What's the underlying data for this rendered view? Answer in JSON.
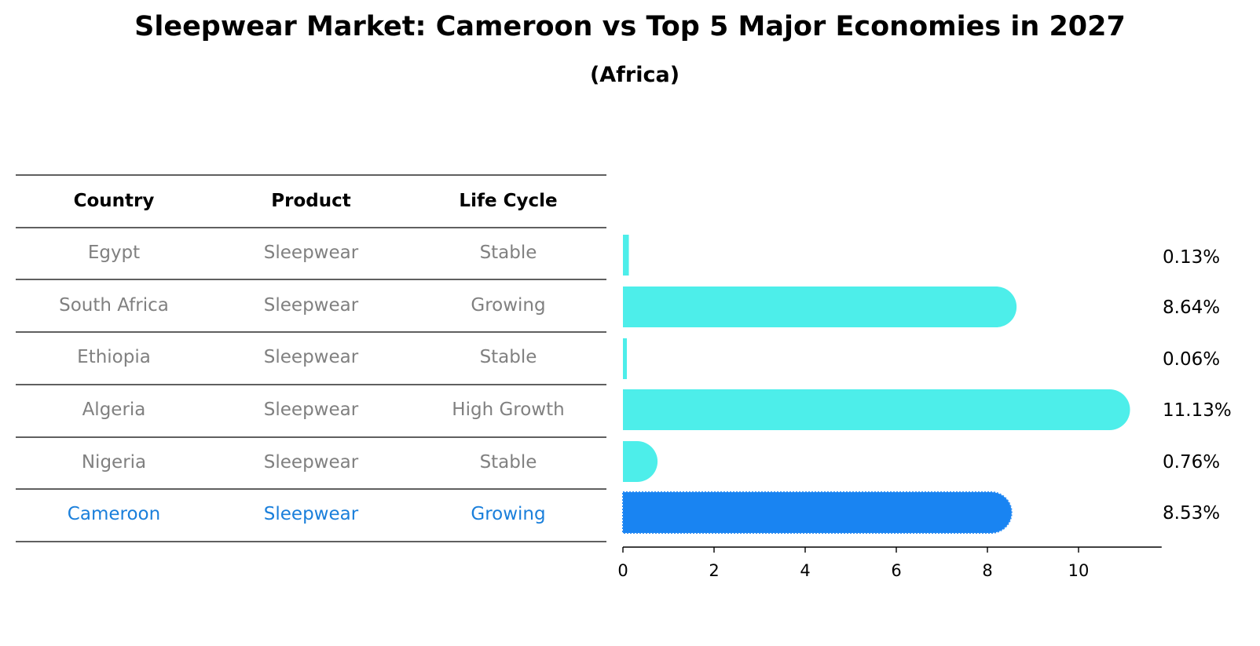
{
  "title": "Sleepwear Market: Cameroon vs Top 5 Major Economies in 2027",
  "subtitle": "(Africa)",
  "table": {
    "headers": [
      "Country",
      "Product",
      "Life Cycle"
    ],
    "rows": [
      [
        "Egypt",
        "Sleepwear",
        "Stable"
      ],
      [
        "South Africa",
        "Sleepwear",
        "Growing"
      ],
      [
        "Ethiopia",
        "Sleepwear",
        "Stable"
      ],
      [
        "Algeria",
        "Sleepwear",
        "High Growth"
      ],
      [
        "Nigeria",
        "Sleepwear",
        "Stable"
      ],
      [
        "Cameroon",
        "Sleepwear",
        "Growing"
      ]
    ],
    "highlight_row": 5
  },
  "colors": {
    "bar": "#4deeea",
    "highlight": "#1984f2",
    "highlight_text": "#1a7fdb",
    "muted_text": "#808080"
  },
  "chart_data": {
    "type": "bar",
    "orientation": "horizontal",
    "categories": [
      "Egypt",
      "South Africa",
      "Ethiopia",
      "Algeria",
      "Nigeria",
      "Cameroon"
    ],
    "values": [
      0.13,
      8.64,
      0.06,
      11.13,
      0.76,
      8.53
    ],
    "value_labels": [
      "0.13%",
      "8.64%",
      "0.06%",
      "11.13%",
      "0.76%",
      "8.53%"
    ],
    "xticks": [
      0,
      2,
      4,
      6,
      8,
      10
    ],
    "xlim": [
      0,
      11.6
    ],
    "highlight_category": "Cameroon",
    "grid": false
  }
}
